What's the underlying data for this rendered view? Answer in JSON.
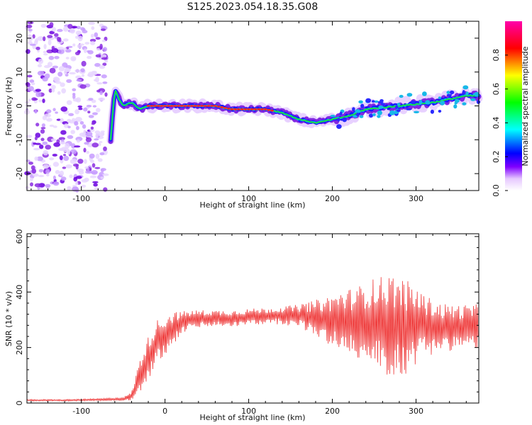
{
  "title": "S125.2023.054.18.35.G08",
  "chart_data": [
    {
      "type": "heatmap",
      "xlabel": "Height of straight line (km)",
      "ylabel": "Frequency (Hz)",
      "xlim": [
        -165,
        375
      ],
      "ylim": [
        -25,
        25
      ],
      "x_ticks": [
        -100,
        0,
        100,
        200,
        300
      ],
      "y_ticks": [
        -20,
        -10,
        0,
        10,
        20
      ],
      "colorbar": {
        "label": "Normalized spectral amplitude",
        "range": [
          0,
          1
        ],
        "ticks": [
          "0.0",
          "0.2",
          "0.4",
          "0.6",
          "0.8"
        ]
      },
      "ridge": {
        "x": [
          -65,
          -60,
          -55,
          -50,
          -40,
          -30,
          -20,
          0,
          20,
          40,
          60,
          80,
          100,
          120,
          140,
          160,
          180,
          200,
          220,
          240,
          260,
          280,
          300,
          320,
          340,
          360,
          375
        ],
        "y": [
          -10,
          5,
          2,
          0,
          1,
          -1,
          0,
          0,
          0,
          0,
          0,
          -1,
          -1,
          -1,
          -2,
          -4,
          -5,
          -4,
          -3,
          -1,
          -0.5,
          0,
          0.5,
          1,
          2,
          3,
          3
        ]
      },
      "noise_region_x": [
        -165,
        -70
      ]
    },
    {
      "type": "line",
      "xlabel": "Height of straight line (km)",
      "ylabel": "SNR (10 * v/v)",
      "xlim": [
        -165,
        375
      ],
      "ylim": [
        0,
        610
      ],
      "x_ticks": [
        -100,
        0,
        100,
        200,
        300
      ],
      "y_ticks": [
        0,
        200,
        400,
        600
      ],
      "series": [
        {
          "color": "#ee3333",
          "x": [
            -165,
            -120,
            -80,
            -50,
            -40,
            -30,
            -20,
            -10,
            0,
            10,
            20,
            30,
            50,
            80,
            100,
            130,
            160,
            190,
            210,
            230,
            250,
            270,
            290,
            300,
            310,
            330,
            350,
            375
          ],
          "y": [
            10,
            10,
            12,
            15,
            25,
            100,
            160,
            220,
            245,
            270,
            290,
            300,
            305,
            305,
            310,
            315,
            315,
            300,
            295,
            290,
            290,
            280,
            270,
            280,
            280,
            270,
            275,
            275
          ],
          "spread": [
            3,
            3,
            4,
            6,
            15,
            60,
            80,
            80,
            70,
            60,
            40,
            35,
            30,
            30,
            30,
            30,
            40,
            80,
            110,
            130,
            160,
            190,
            170,
            140,
            110,
            90,
            80,
            80
          ]
        }
      ]
    }
  ]
}
